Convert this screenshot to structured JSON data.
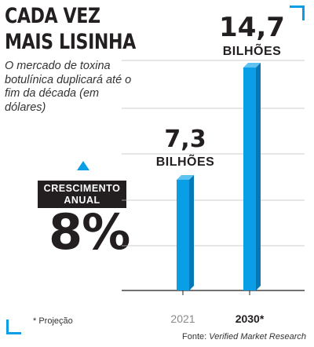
{
  "headline": {
    "title_line1": "CADA VEZ",
    "title_line2": "MAIS LISINHA",
    "subtitle": "O mercado de toxina botulínica duplicará até o fim da década (em dólares)"
  },
  "growth": {
    "label": "CRESCIMENTO ANUAL",
    "value": "8%"
  },
  "footnote": "* Projeção",
  "source": {
    "prefix": "Fonte: ",
    "name": "Verified Market Research"
  },
  "colors": {
    "accent": "#0a9ee6",
    "text": "#231f20"
  },
  "chart_data": {
    "type": "bar",
    "categories": [
      "2021",
      "2030*"
    ],
    "values": [
      7.3,
      14.7
    ],
    "value_labels": [
      "7,3",
      "14,7"
    ],
    "unit_label": "BILHÕES",
    "ylim": [
      0,
      14.7
    ],
    "grid": true,
    "xlabel": "",
    "ylabel": ""
  }
}
